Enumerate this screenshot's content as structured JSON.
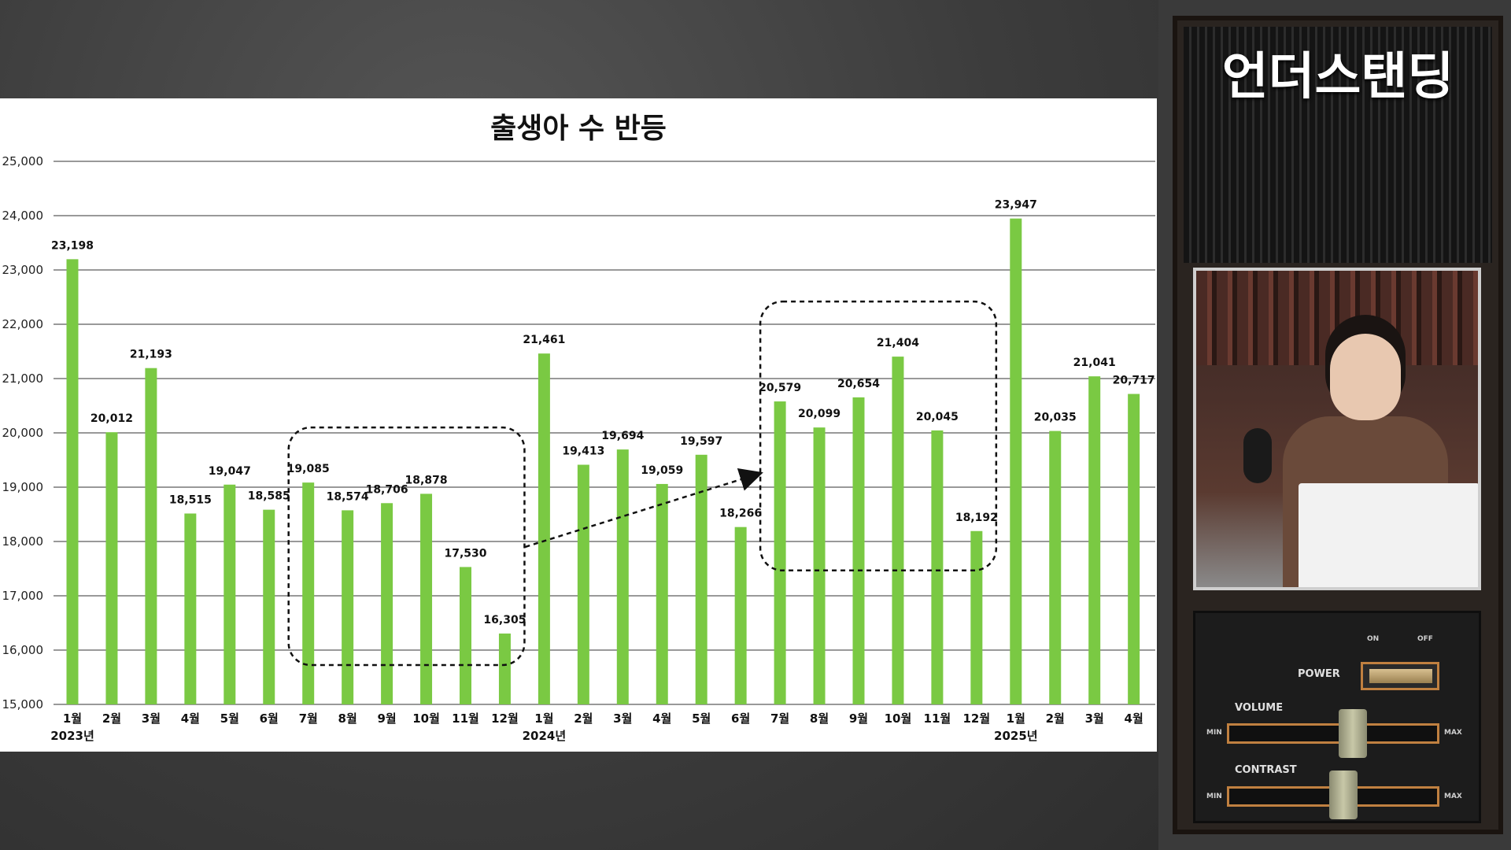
{
  "chart_data": {
    "type": "bar",
    "title": "출생아 수 반등",
    "categories": [
      "1월",
      "2월",
      "3월",
      "4월",
      "5월",
      "6월",
      "7월",
      "8월",
      "9월",
      "10월",
      "11월",
      "12월",
      "1월",
      "2월",
      "3월",
      "4월",
      "5월",
      "6월",
      "7월",
      "8월",
      "9월",
      "10월",
      "11월",
      "12월",
      "1월",
      "2월",
      "3월",
      "4월"
    ],
    "year_labels": [
      {
        "index": 0,
        "label": "2023년"
      },
      {
        "index": 12,
        "label": "2024년"
      },
      {
        "index": 24,
        "label": "2025년"
      }
    ],
    "values": [
      23198,
      20012,
      21193,
      18515,
      19047,
      18585,
      19085,
      18574,
      18706,
      18878,
      17530,
      16305,
      21461,
      19413,
      19694,
      19059,
      19597,
      18266,
      20579,
      20099,
      20654,
      21404,
      20045,
      18192,
      23947,
      20035,
      21041,
      20717
    ],
    "value_labels": [
      "23,198",
      "20,012",
      "21,193",
      "18,515",
      "19,047",
      "18,585",
      "19,085",
      "18,574",
      "18,706",
      "18,878",
      "17,530",
      "16,305",
      "21,461",
      "19,413",
      "19,694",
      "19,059",
      "19,597",
      "18,266",
      "20,579",
      "20,099",
      "20,654",
      "21,404",
      "20,045",
      "18,192",
      "23,947",
      "20,035",
      "21,041",
      "20,717"
    ],
    "ylim": [
      15000,
      25000
    ],
    "yticks": [
      15000,
      16000,
      17000,
      18000,
      19000,
      20000,
      21000,
      22000,
      23000,
      24000,
      25000
    ],
    "ytick_labels": [
      "15,000",
      "16,000",
      "17,000",
      "18,000",
      "19,000",
      "20,000",
      "21,000",
      "22,000",
      "23,000",
      "24,000",
      "25,000"
    ],
    "grid": true,
    "bar_color": "#7ac943",
    "annotations": [
      {
        "type": "dashed-box",
        "from_index": 6,
        "to_index": 11
      },
      {
        "type": "dashed-box",
        "from_index": 18,
        "to_index": 23
      },
      {
        "type": "dashed-arrow",
        "from_index": 11,
        "to_index": 18
      }
    ]
  },
  "side": {
    "brand": "언더스탠딩",
    "power_label": "POWER",
    "on_label": "ON",
    "off_label": "OFF",
    "volume_label": "VOLUME",
    "contrast_label": "CONTRAST",
    "min_label": "MIN",
    "max_label": "MAX"
  },
  "colors": {
    "bar": "#7ac943",
    "grid": "#333333",
    "panel_accent": "#c08040"
  }
}
